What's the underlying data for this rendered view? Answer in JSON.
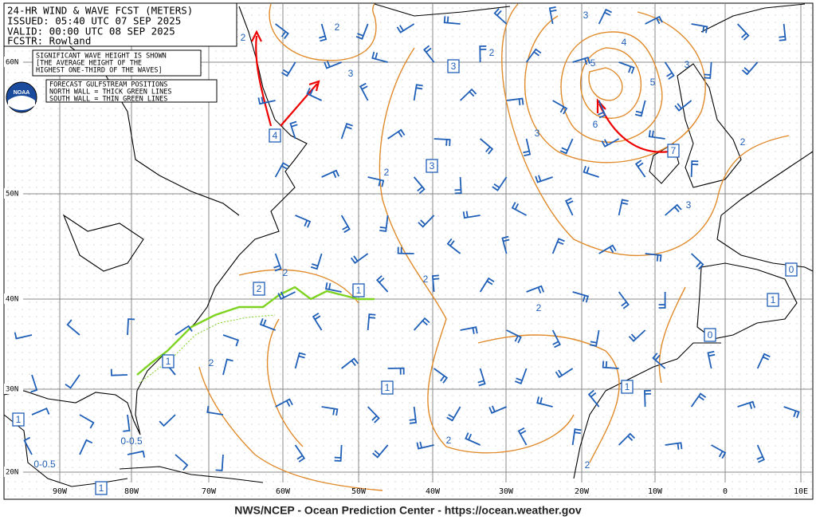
{
  "header": {
    "lines": [
      "24-HR WIND & WAVE FCST (METERS)",
      "ISSUED: 05:40 UTC 07 SEP 2025",
      "VALID:  00:00 UTC 08 SEP 2025",
      "FCSTR:  Rowland"
    ]
  },
  "notes": {
    "wave_height": [
      "SIGNIFICANT WAVE HEIGHT IS SHOWN",
      "[THE AVERAGE HEIGHT OF THE",
      "HIGHEST ONE-THIRD OF THE WAVES]"
    ],
    "gulfstream": [
      "FORECAST GULFSTREAM POSITIONS",
      "NORTH WALL = THICK GREEN LINES",
      "SOUTH WALL = THIN GREEN LINES"
    ]
  },
  "logo": "NOAA",
  "lat_labels": [
    "60N",
    "50N",
    "40N",
    "30N",
    "20N"
  ],
  "lon_labels": [
    "90W",
    "80W",
    "70W",
    "60W",
    "50W",
    "40W",
    "30W",
    "20W",
    "10W",
    "0",
    "10E"
  ],
  "boxed_heights": [
    "4",
    "3",
    "3",
    "7",
    "2",
    "1",
    "1",
    "1",
    "1",
    "1",
    "1",
    "0",
    "1",
    "0"
  ],
  "contour_labels": [
    "2",
    "2",
    "3",
    "3",
    "2",
    "4",
    "5",
    "5",
    "6",
    "3",
    "3",
    "2",
    "2",
    "3",
    "2",
    "2",
    "2",
    "2",
    "2",
    "2",
    "0-0.5",
    "0-0.5"
  ],
  "footer": "NWS/NCEP - Ocean Prediction Center - https://ocean.weather.gov"
}
